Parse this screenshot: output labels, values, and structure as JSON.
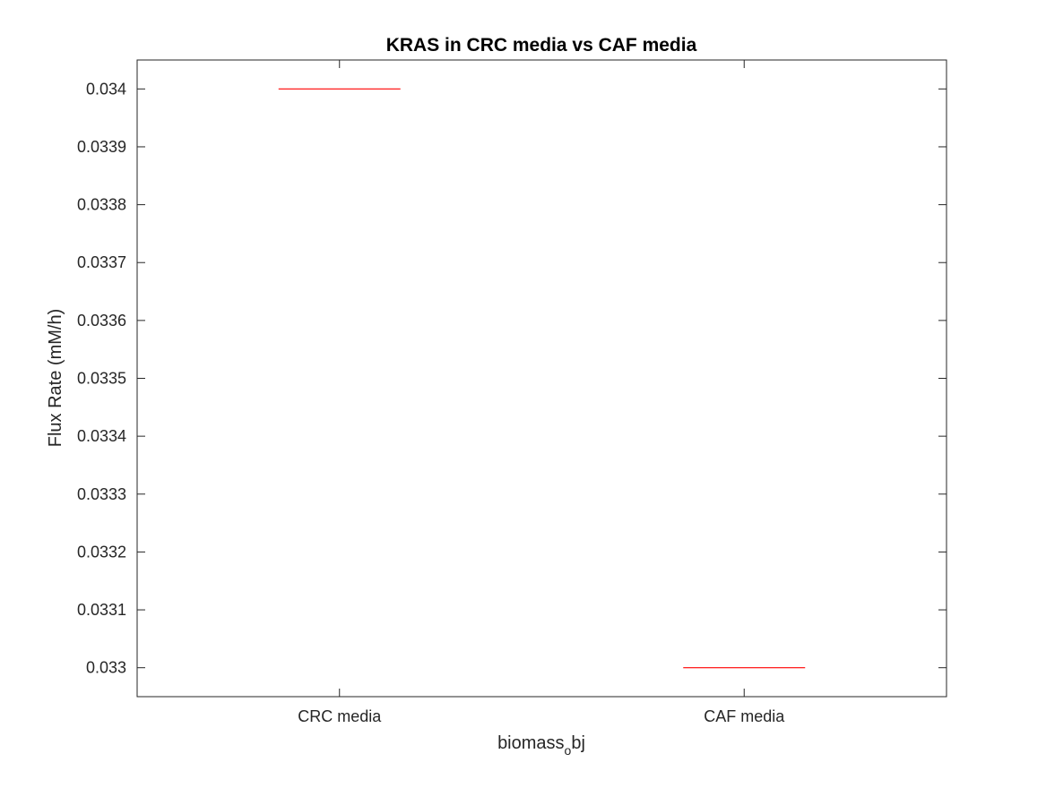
{
  "chart_data": {
    "type": "box",
    "title": "KRAS in CRC media vs CAF media",
    "xlabel": {
      "main": "biomass",
      "subscript": "o",
      "rest": "bj"
    },
    "ylabel": "Flux Rate (mM/h)",
    "categories": [
      "CRC media",
      "CAF media"
    ],
    "values": [
      0.034,
      0.033
    ],
    "ylim": [
      0.03295,
      0.03405
    ],
    "yticks": [
      0.033,
      0.0331,
      0.0332,
      0.0333,
      0.0334,
      0.0335,
      0.0336,
      0.0337,
      0.0338,
      0.0339,
      0.034
    ],
    "ytick_labels": [
      "0.033",
      "0.0331",
      "0.0332",
      "0.0333",
      "0.0334",
      "0.0335",
      "0.0336",
      "0.0337",
      "0.0338",
      "0.0339",
      "0.034"
    ],
    "grid": false,
    "median_color": "#ff0000",
    "axis_color": "#262626"
  }
}
